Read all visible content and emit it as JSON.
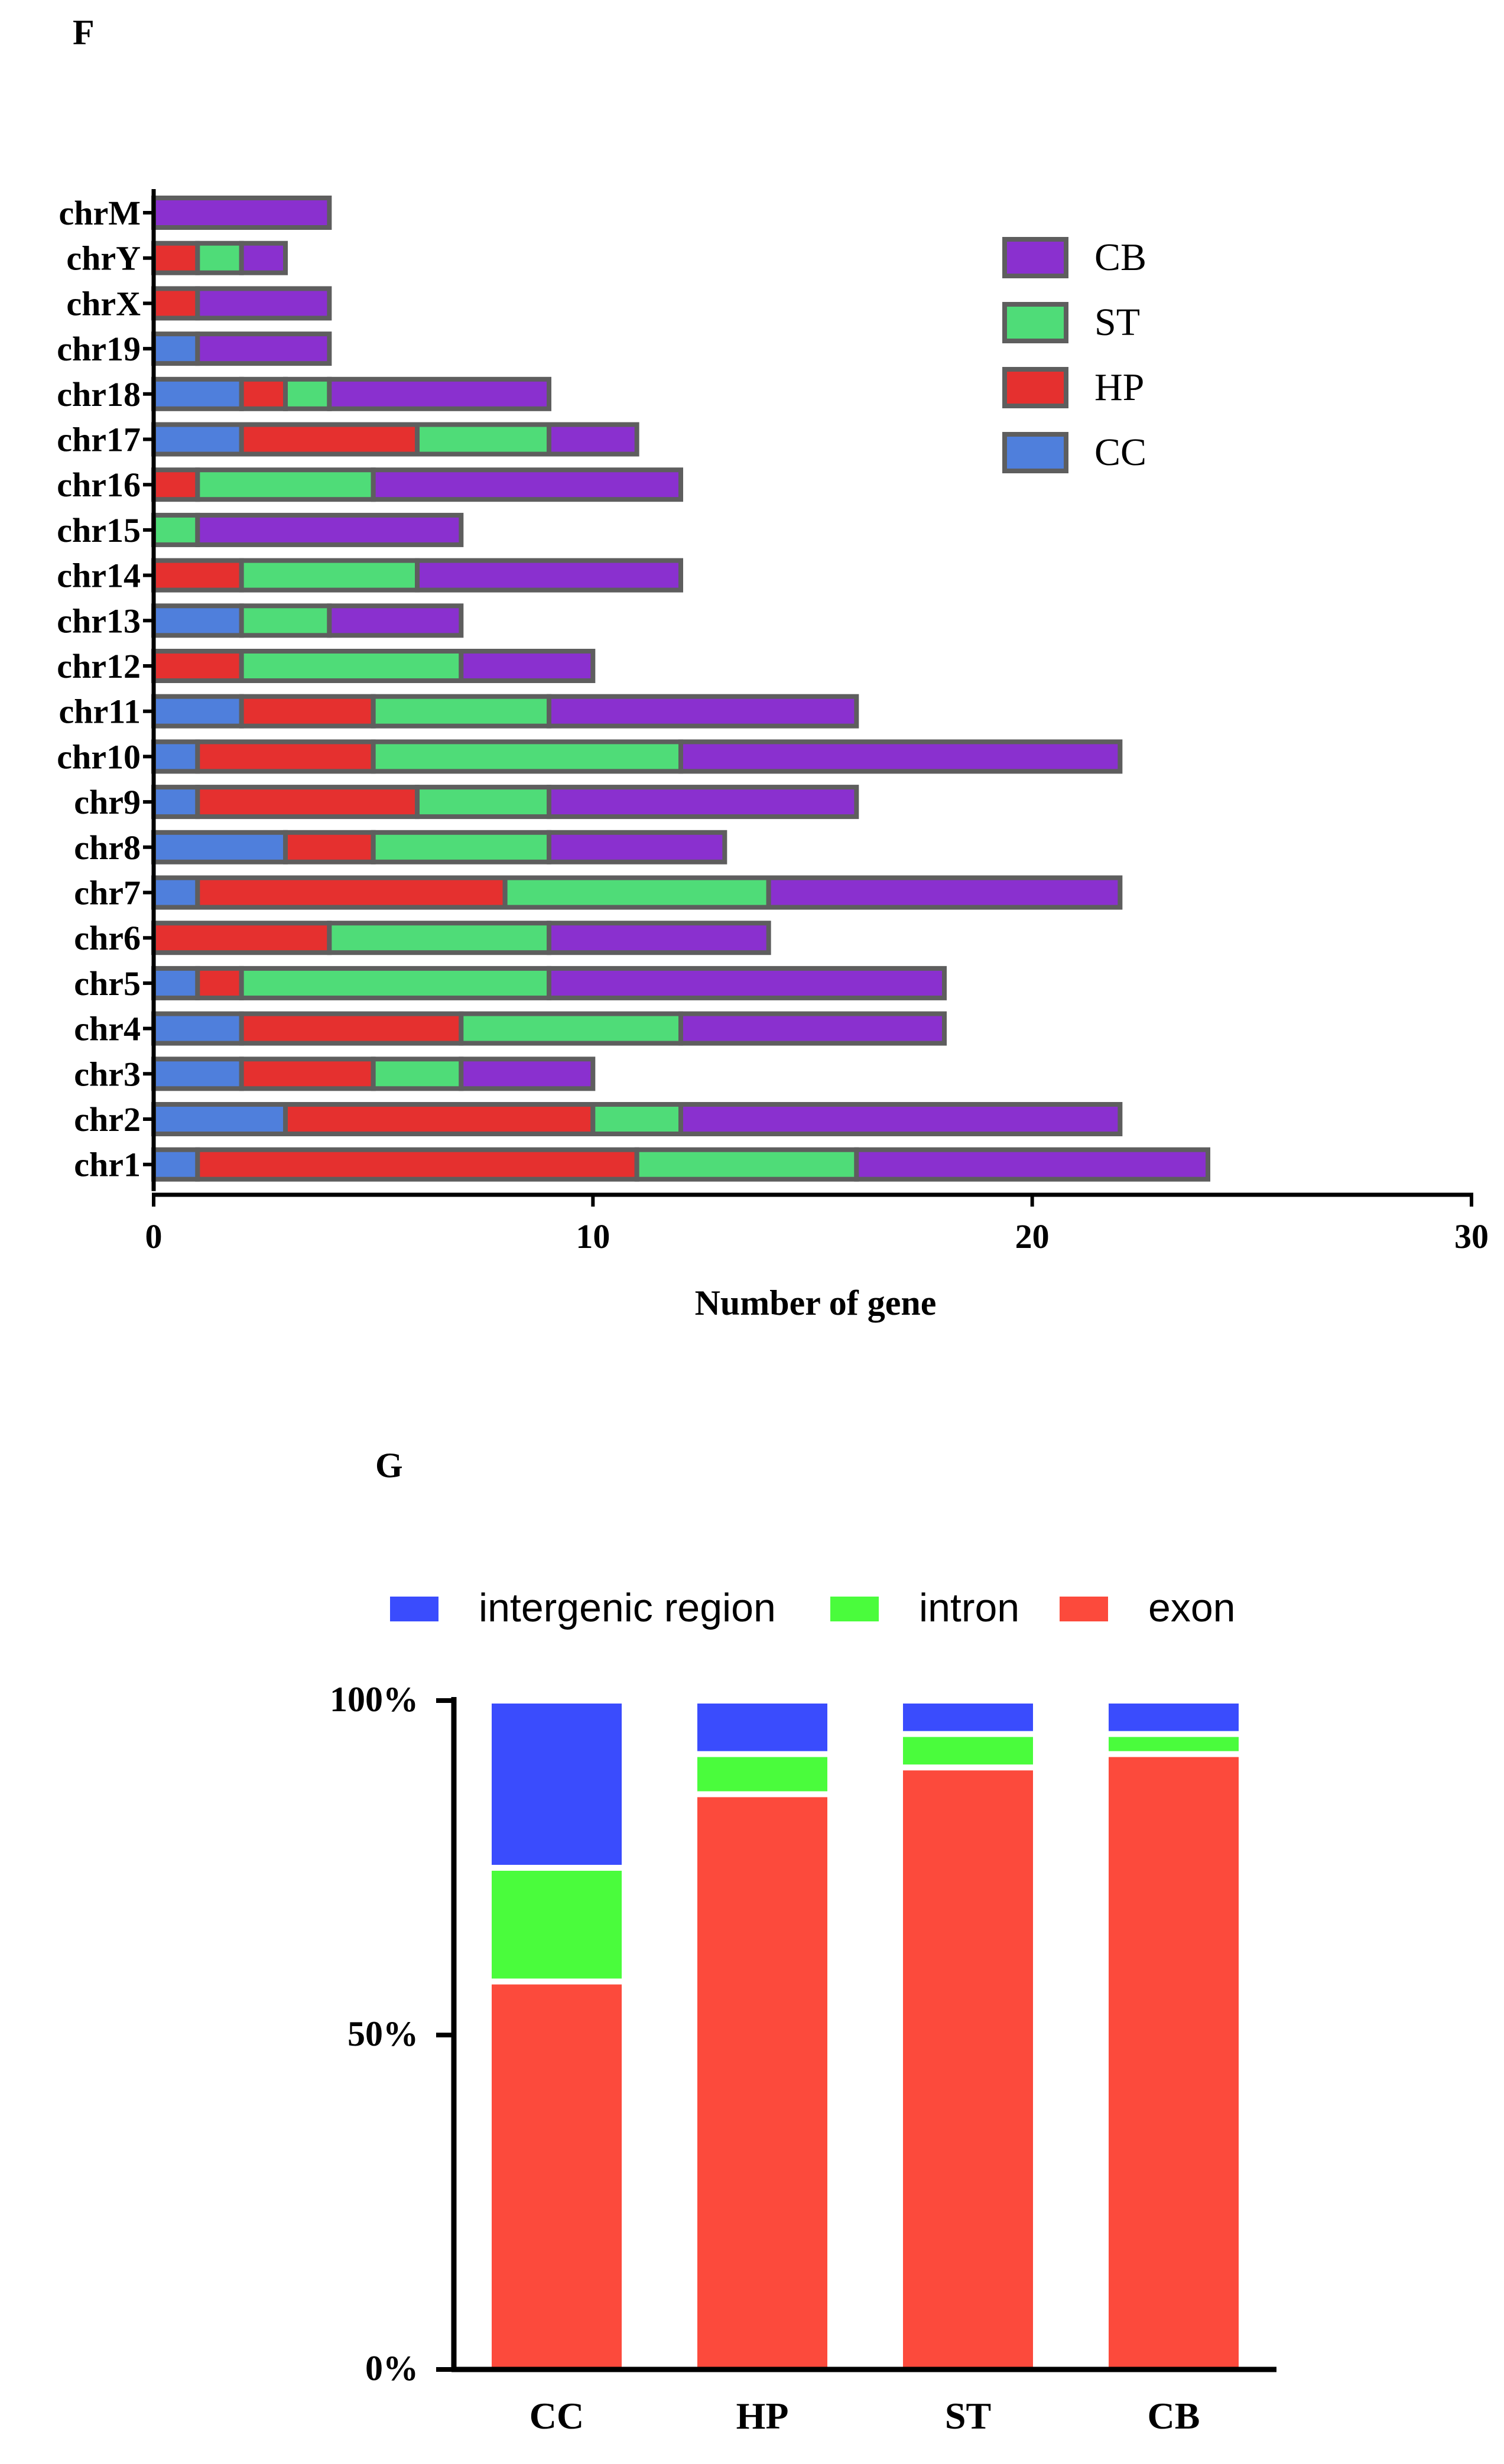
{
  "panels": {
    "f_label": "F",
    "g_label": "G"
  },
  "colors": {
    "CC": "#4f7fdc",
    "HP": "#e5302f",
    "ST": "#4fdc78",
    "CB": "#8a30cf",
    "intergenic": "#3a4cfd",
    "intron": "#4afc3c",
    "exon": "#fc4a3c"
  },
  "chart_data": [
    {
      "type": "bar",
      "orientation": "horizontal",
      "stacked": true,
      "xlabel": "Number of gene",
      "xlim": [
        0,
        30
      ],
      "xticks": [
        "0",
        "10",
        "20",
        "30"
      ],
      "categories": [
        "chrM",
        "chrY",
        "chrX",
        "chr19",
        "chr18",
        "chr17",
        "chr16",
        "chr15",
        "chr14",
        "chr13",
        "chr12",
        "chr11",
        "chr10",
        "chr9",
        "chr8",
        "chr7",
        "chr6",
        "chr5",
        "chr4",
        "chr3",
        "chr2",
        "chr1"
      ],
      "series": [
        {
          "name": "CC",
          "values": [
            0,
            0,
            0,
            1,
            2,
            2,
            0,
            0,
            0,
            2,
            0,
            2,
            1,
            1,
            3,
            1,
            0,
            1,
            2,
            2,
            3,
            1
          ]
        },
        {
          "name": "HP",
          "values": [
            0,
            1,
            1,
            0,
            1,
            4,
            1,
            0,
            2,
            0,
            2,
            3,
            4,
            5,
            2,
            7,
            4,
            1,
            5,
            3,
            7,
            10
          ]
        },
        {
          "name": "ST",
          "values": [
            0,
            1,
            0,
            0,
            1,
            3,
            4,
            1,
            4,
            2,
            5,
            4,
            7,
            3,
            4,
            6,
            5,
            7,
            5,
            2,
            2,
            5
          ]
        },
        {
          "name": "CB",
          "values": [
            4,
            1,
            3,
            3,
            5,
            2,
            7,
            6,
            6,
            3,
            3,
            7,
            10,
            7,
            4,
            8,
            5,
            9,
            6,
            3,
            10,
            8
          ]
        }
      ],
      "legend": {
        "position": "top-right",
        "entries": [
          "CB",
          "ST",
          "HP",
          "CC"
        ]
      }
    },
    {
      "type": "bar",
      "orientation": "vertical",
      "stacked": true,
      "percent": true,
      "categories": [
        "CC",
        "HP",
        "ST",
        "CB"
      ],
      "yticks": [
        "0%",
        "50%",
        "100%"
      ],
      "ylim": [
        0,
        100
      ],
      "series": [
        {
          "name": "exon",
          "values": [
            58,
            86,
            90,
            92
          ]
        },
        {
          "name": "intron",
          "values": [
            17,
            6,
            5,
            3
          ]
        },
        {
          "name": "intergenic region",
          "values": [
            25,
            8,
            5,
            5
          ]
        }
      ],
      "legend": {
        "position": "top",
        "entries": [
          "intergenic region",
          "intron",
          "exon"
        ]
      }
    }
  ]
}
